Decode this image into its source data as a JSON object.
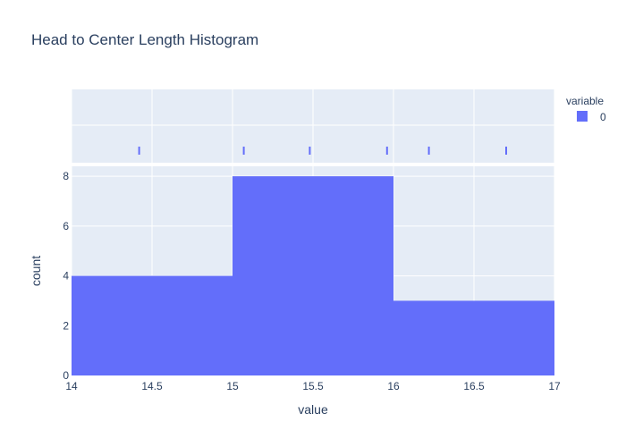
{
  "chart_data": {
    "type": "bar",
    "title": "Head to Center Length Histogram",
    "xlabel": "value",
    "ylabel": "count",
    "xlim": [
      14,
      17
    ],
    "ylim": [
      0,
      8.4
    ],
    "xticks": [
      "14",
      "14.5",
      "15",
      "15.5",
      "16",
      "16.5",
      "17"
    ],
    "yticks": [
      "0",
      "2",
      "4",
      "6",
      "8"
    ],
    "bins": [
      {
        "start": 14,
        "end": 15,
        "count": 4
      },
      {
        "start": 15,
        "end": 16,
        "count": 8
      },
      {
        "start": 16,
        "end": 17,
        "count": 3
      }
    ],
    "rug_values": [
      14.42,
      15.07,
      15.48,
      15.96,
      16.22,
      16.7
    ],
    "grid": true,
    "legend": {
      "title": "variable",
      "placement": "top-right",
      "entries": [
        {
          "name": "0",
          "color": "#636efa"
        }
      ]
    },
    "colors": {
      "bar": "#636efa",
      "plot_bg": "#e5ecf6",
      "grid": "#ffffff",
      "text": "#2a3f5f"
    }
  }
}
